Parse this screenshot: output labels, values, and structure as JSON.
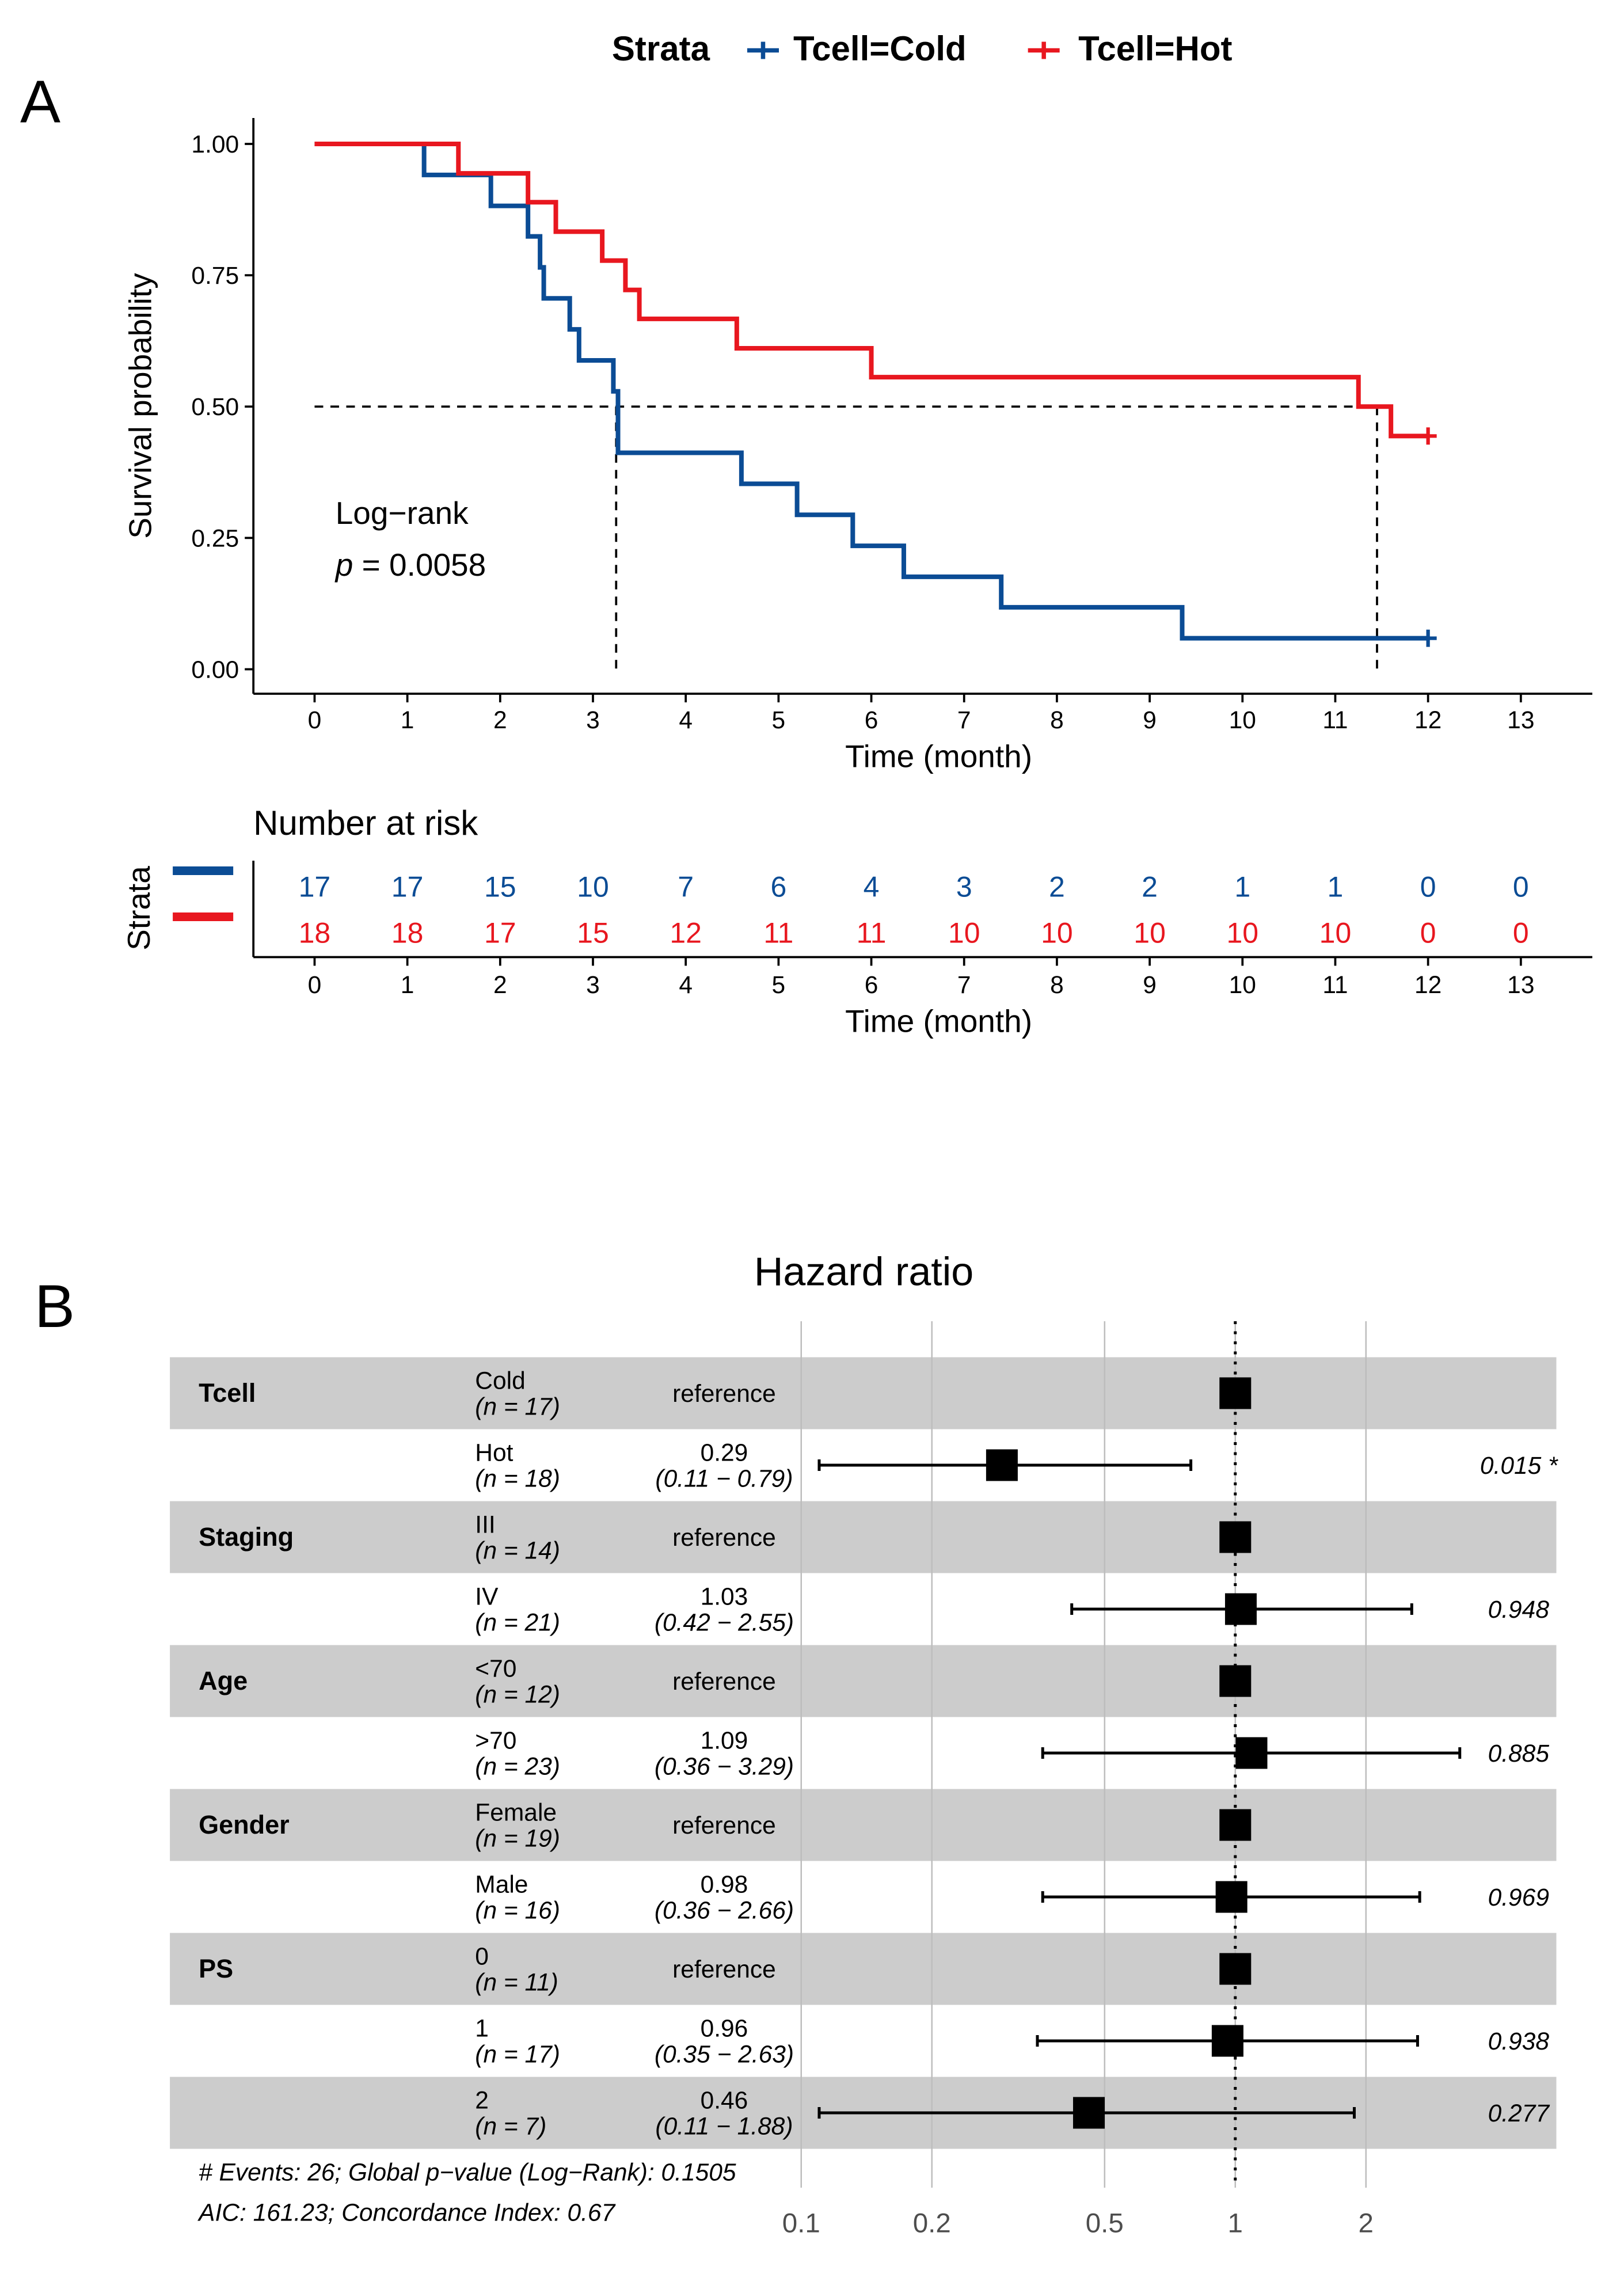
{
  "panels": {
    "a_label": "A",
    "b_label": "B"
  },
  "chart_data": [
    {
      "type": "line",
      "subtype": "kaplan-meier",
      "legend": {
        "title": "Strata",
        "position": "top",
        "entries": [
          {
            "name": "Tcell=Cold",
            "color": "#0B4C95"
          },
          {
            "name": "Tcell=Hot",
            "color": "#E8171F"
          }
        ]
      },
      "xlabel": "Time (month)",
      "ylabel": "Survival probability",
      "xlim": [
        0,
        13
      ],
      "ylim": [
        0,
        1
      ],
      "xticks": [
        "0",
        "1",
        "2",
        "3",
        "4",
        "5",
        "6",
        "7",
        "8",
        "9",
        "10",
        "11",
        "12",
        "13"
      ],
      "yticks": [
        "0.00",
        "0.25",
        "0.50",
        "0.75",
        "1.00"
      ],
      "grid": false,
      "annotation": {
        "line1": "Log−rank",
        "p_label": "p",
        "p_rest": " = 0.0058"
      },
      "median_line_y": 0.5,
      "medians": [
        3.25,
        11.45
      ],
      "series": [
        {
          "name": "Tcell=Cold",
          "color": "#0B4C95",
          "steps": [
            [
              0,
              1.0
            ],
            [
              1.18,
              0.941
            ],
            [
              1.9,
              0.882
            ],
            [
              2.3,
              0.824
            ],
            [
              2.43,
              0.765
            ],
            [
              2.47,
              0.706
            ],
            [
              2.75,
              0.647
            ],
            [
              2.85,
              0.588
            ],
            [
              3.22,
              0.529
            ],
            [
              3.27,
              0.412
            ],
            [
              4.6,
              0.353
            ],
            [
              5.2,
              0.294
            ],
            [
              5.8,
              0.235
            ],
            [
              6.35,
              0.176
            ],
            [
              7.4,
              0.118
            ],
            [
              9.35,
              0.059
            ],
            [
              12.0,
              0.059
            ]
          ],
          "censor": [
            [
              12.0,
              0.059
            ]
          ]
        },
        {
          "name": "Tcell=Hot",
          "color": "#E8171F",
          "steps": [
            [
              0,
              1.0
            ],
            [
              1.55,
              0.944
            ],
            [
              2.3,
              0.889
            ],
            [
              2.6,
              0.833
            ],
            [
              3.1,
              0.778
            ],
            [
              3.35,
              0.722
            ],
            [
              3.5,
              0.667
            ],
            [
              4.55,
              0.611
            ],
            [
              6.0,
              0.556
            ],
            [
              11.25,
              0.5
            ],
            [
              11.6,
              0.444
            ],
            [
              12.0,
              0.444
            ]
          ],
          "censor": [
            [
              12.0,
              0.444
            ]
          ]
        }
      ]
    },
    {
      "type": "table",
      "title": "Number at risk",
      "ylabel": "Strata",
      "xlabel": "Time (month)",
      "x": [
        "0",
        "1",
        "2",
        "3",
        "4",
        "5",
        "6",
        "7",
        "8",
        "9",
        "10",
        "11",
        "12",
        "13"
      ],
      "series": [
        {
          "name": "Tcell=Cold",
          "color": "#0B4C95",
          "values": [
            "17",
            "17",
            "15",
            "10",
            "7",
            "6",
            "4",
            "3",
            "2",
            "2",
            "1",
            "1",
            "0",
            "0"
          ]
        },
        {
          "name": "Tcell=Hot",
          "color": "#E8171F",
          "values": [
            "18",
            "18",
            "17",
            "15",
            "12",
            "11",
            "11",
            "10",
            "10",
            "10",
            "10",
            "10",
            "0",
            "0"
          ]
        }
      ]
    },
    {
      "type": "scatter",
      "subtype": "forest",
      "title": "Hazard ratio",
      "x_scale": "log",
      "xticks": [
        "0.1",
        "0.2",
        "0.5",
        "1",
        "2"
      ],
      "reference_line": 1,
      "rows": [
        {
          "variable": "Tcell",
          "level": "Cold",
          "n": "(n = 17)",
          "hr_text": "reference",
          "ci_text": "",
          "p": "",
          "hr": 1.0,
          "lo": null,
          "hi": null
        },
        {
          "variable": "",
          "level": "Hot",
          "n": "(n = 18)",
          "hr_text": "0.29",
          "ci_text": "(0.11 − 0.79)",
          "p": "0.015 *",
          "hr": 0.29,
          "lo": 0.11,
          "hi": 0.79
        },
        {
          "variable": "Staging",
          "level": "III",
          "n": "(n = 14)",
          "hr_text": "reference",
          "ci_text": "",
          "p": "",
          "hr": 1.0,
          "lo": null,
          "hi": null
        },
        {
          "variable": "",
          "level": "IV",
          "n": "(n = 21)",
          "hr_text": "1.03",
          "ci_text": "(0.42 − 2.55)",
          "p": "0.948",
          "hr": 1.03,
          "lo": 0.42,
          "hi": 2.55
        },
        {
          "variable": "Age",
          "level": "<70",
          "n": "(n = 12)",
          "hr_text": "reference",
          "ci_text": "",
          "p": "",
          "hr": 1.0,
          "lo": null,
          "hi": null
        },
        {
          "variable": "",
          "level": ">70",
          "n": "(n = 23)",
          "hr_text": "1.09",
          "ci_text": "(0.36 − 3.29)",
          "p": "0.885",
          "hr": 1.09,
          "lo": 0.36,
          "hi": 3.29
        },
        {
          "variable": "Gender",
          "level": "Female",
          "n": "(n = 19)",
          "hr_text": "reference",
          "ci_text": "",
          "p": "",
          "hr": 1.0,
          "lo": null,
          "hi": null
        },
        {
          "variable": "",
          "level": "Male",
          "n": "(n = 16)",
          "hr_text": "0.98",
          "ci_text": "(0.36 − 2.66)",
          "p": "0.969",
          "hr": 0.98,
          "lo": 0.36,
          "hi": 2.66
        },
        {
          "variable": "PS",
          "level": "0",
          "n": "(n = 11)",
          "hr_text": "reference",
          "ci_text": "",
          "p": "",
          "hr": 1.0,
          "lo": null,
          "hi": null
        },
        {
          "variable": "",
          "level": "1",
          "n": "(n = 17)",
          "hr_text": "0.96",
          "ci_text": "(0.35 − 2.63)",
          "p": "0.938",
          "hr": 0.96,
          "lo": 0.35,
          "hi": 2.63
        },
        {
          "variable": "",
          "level": "2",
          "n": "(n = 7)",
          "hr_text": "0.46",
          "ci_text": "(0.11 − 1.88)",
          "p": "0.277",
          "hr": 0.46,
          "lo": 0.11,
          "hi": 1.88
        }
      ],
      "footnote_1": "# Events: 26; Global p−value (Log−Rank): 0.1505",
      "footnote_2": "AIC: 161.23; Concordance Index: 0.67",
      "band_color": "#CCCCCC"
    }
  ]
}
